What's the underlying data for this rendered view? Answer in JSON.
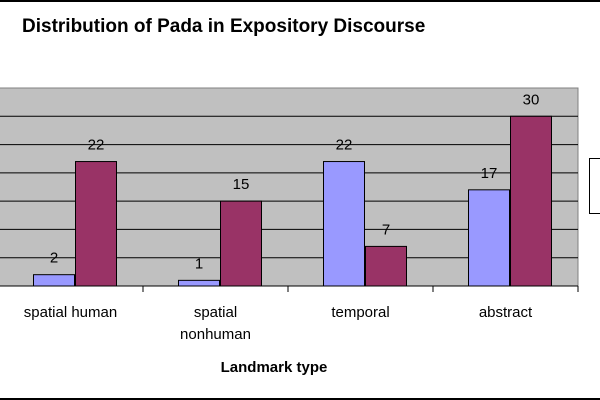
{
  "chart_data": {
    "type": "bar",
    "title": "Distribution of Pada in Expository Discourse",
    "xlabel": "Landmark type",
    "ylabel": "",
    "categories": [
      [
        "spatial human"
      ],
      [
        "spatial",
        "nonhuman"
      ],
      [
        "temporal"
      ],
      [
        "abstract"
      ]
    ],
    "series": [
      {
        "values": [
          2,
          1,
          22,
          17
        ],
        "color": "#9999ff"
      },
      {
        "values": [
          22,
          15,
          7,
          30
        ],
        "color": "#993366"
      }
    ],
    "ylim": [
      0,
      35
    ],
    "grid": true,
    "plot_background": "#c0c0c0",
    "legend_placement": "right"
  }
}
